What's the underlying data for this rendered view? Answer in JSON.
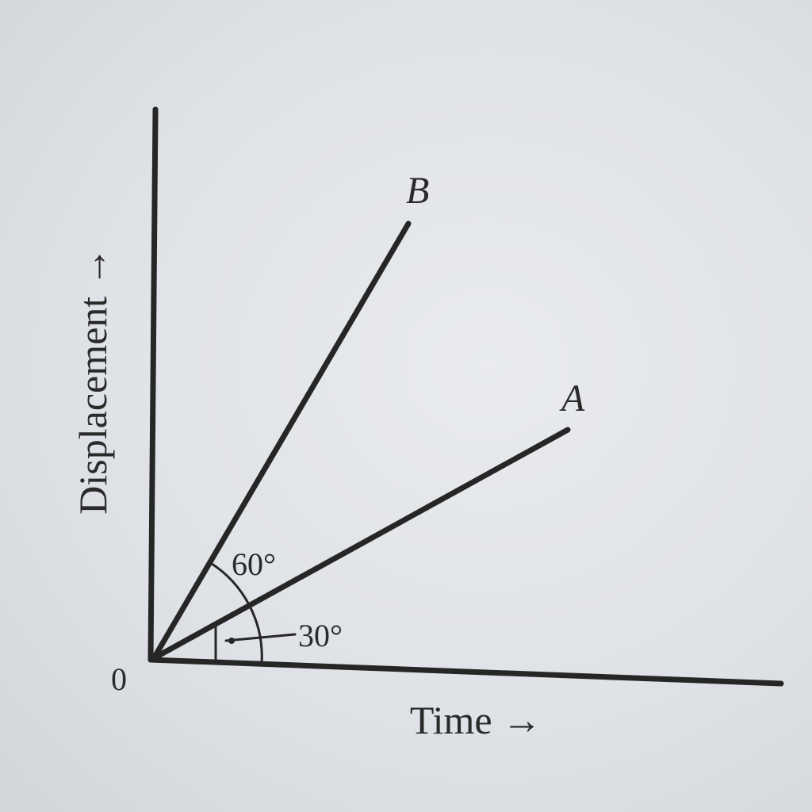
{
  "diagram": {
    "axes": {
      "x_label": "Time →",
      "y_label": "Displacement →",
      "origin_label": "0"
    },
    "lines": [
      {
        "name": "A",
        "angle_deg": 30
      },
      {
        "name": "B",
        "angle_deg": 60
      }
    ],
    "angle_labels": {
      "angle_b": "60°",
      "angle_a": "30°"
    }
  }
}
